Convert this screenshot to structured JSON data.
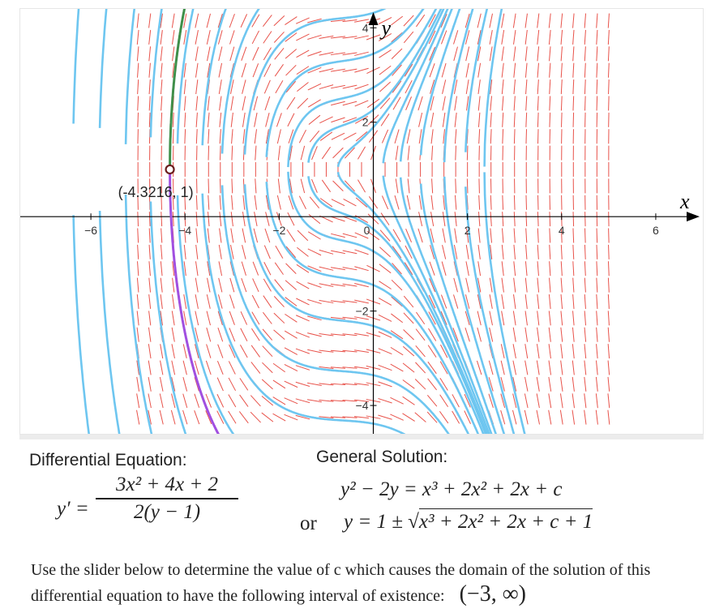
{
  "graph": {
    "x_axis_label": "x",
    "y_axis_label": "y",
    "x_tick_labels": [
      "−6",
      "−4",
      "−2",
      "0",
      "2",
      "4",
      "6"
    ],
    "y_tick_labels": [
      "4",
      "2",
      "−2",
      "−4"
    ],
    "point_label": "(-4.3216, 1)",
    "point": {
      "x": -4.3216,
      "y": 1
    },
    "colors": {
      "slope_field": "#e8524a",
      "solution_curves": "#6ec6f0",
      "upper_branch": "#3f8f4a",
      "lower_branch": "#a14fe0",
      "axes": "#000000"
    },
    "x_range": [
      -7.5,
      7.0
    ],
    "y_range": [
      -4.6,
      4.4
    ]
  },
  "left_panel": {
    "title": "Differential Equation:",
    "lhs": "y′ =",
    "numerator": "3x² + 4x + 2",
    "denominator": "2(y − 1)"
  },
  "right_panel": {
    "title": "General Solution:",
    "line1": "y² − 2y = x³ + 2x² + 2x + c",
    "or_word": "or",
    "line2_prefix": "y = 1 ± √",
    "line2_radicand": "x³ + 2x² + 2x + c + 1"
  },
  "prompt": {
    "text_part1": "Use the slider below to determine the value of c which causes the domain of the solution of this differential equation to have the following interval of existence:",
    "interval": "(−3, ∞)"
  }
}
